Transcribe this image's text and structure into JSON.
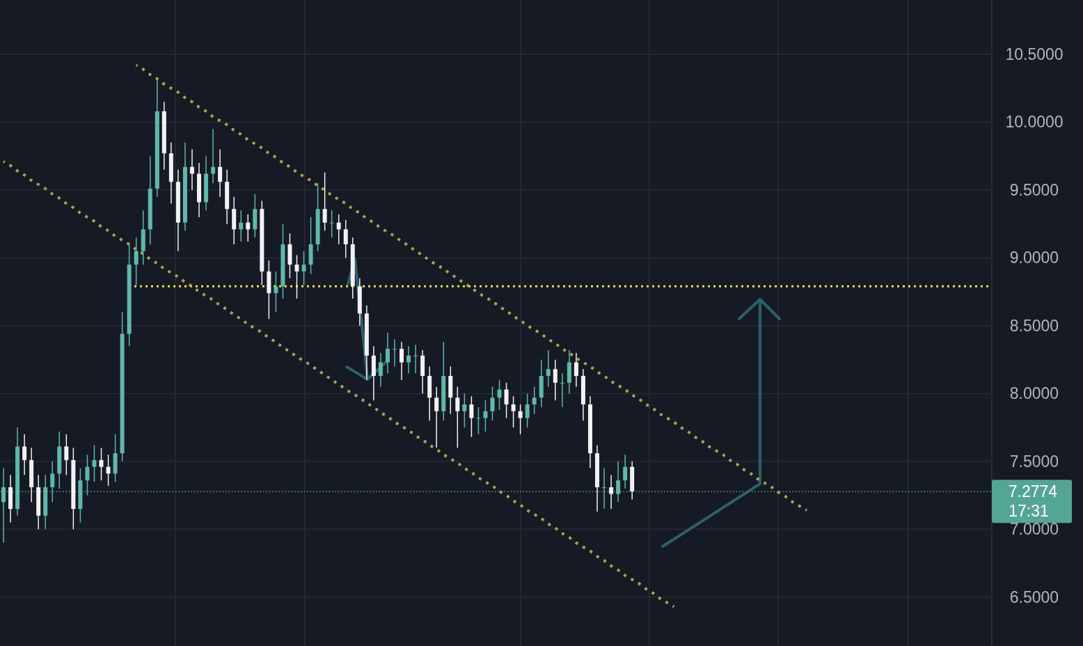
{
  "chart_data": {
    "type": "candlestick",
    "categories": [
      null,
      null,
      null,
      null,
      null,
      null,
      null,
      null,
      null,
      null,
      null,
      null,
      null,
      null,
      null,
      null,
      null,
      null,
      null,
      null,
      null,
      null,
      null,
      null,
      null,
      null,
      null,
      null,
      null,
      null,
      null,
      null,
      null,
      null,
      null,
      null,
      null,
      null,
      null,
      null,
      null,
      null,
      null,
      null,
      null,
      null,
      null,
      null,
      null,
      null,
      null,
      null,
      null,
      null,
      null,
      null,
      null,
      null,
      null,
      null,
      null,
      null,
      null,
      null,
      null,
      null,
      null,
      null,
      null,
      null,
      null,
      null,
      null,
      null,
      null,
      null,
      null,
      null,
      null,
      null,
      null,
      null,
      null,
      null,
      null,
      null,
      null,
      null,
      null,
      null,
      null,
      null,
      null,
      null,
      null,
      null,
      null,
      null,
      null,
      null,
      null,
      null,
      null,
      null,
      null,
      null,
      null,
      null,
      null,
      null,
      null,
      null,
      null,
      null,
      null,
      null,
      null,
      null,
      null,
      null,
      null,
      null,
      null,
      null,
      null,
      null,
      null,
      null,
      null,
      null,
      null,
      null,
      null,
      null,
      null,
      null,
      null,
      null,
      null,
      null,
      null,
      null
    ],
    "ohlc": [
      [
        7.2,
        7.45,
        6.9,
        7.31
      ],
      [
        7.31,
        7.4,
        7.05,
        7.15
      ],
      [
        7.15,
        7.75,
        7.1,
        7.61
      ],
      [
        7.61,
        7.7,
        7.4,
        7.51
      ],
      [
        7.51,
        7.6,
        7.2,
        7.31
      ],
      [
        7.31,
        7.4,
        7.0,
        7.1
      ],
      [
        7.1,
        7.4,
        7.0,
        7.31
      ],
      [
        7.31,
        7.5,
        7.2,
        7.41
      ],
      [
        7.41,
        7.72,
        7.3,
        7.61
      ],
      [
        7.61,
        7.7,
        7.4,
        7.51
      ],
      [
        7.51,
        7.6,
        7.0,
        7.15
      ],
      [
        7.15,
        7.45,
        7.05,
        7.36
      ],
      [
        7.36,
        7.55,
        7.25,
        7.46
      ],
      [
        7.46,
        7.62,
        7.35,
        7.51
      ],
      [
        7.51,
        7.6,
        7.36,
        7.46
      ],
      [
        7.46,
        7.55,
        7.32,
        7.41
      ],
      [
        7.41,
        7.7,
        7.35,
        7.56
      ],
      [
        7.56,
        8.6,
        7.5,
        8.44
      ],
      [
        8.44,
        9.1,
        8.35,
        8.95
      ],
      [
        8.95,
        9.15,
        8.8,
        9.05
      ],
      [
        9.05,
        9.35,
        8.95,
        9.21
      ],
      [
        9.21,
        9.75,
        9.1,
        9.51
      ],
      [
        9.51,
        10.32,
        9.45,
        10.08
      ],
      [
        10.08,
        10.15,
        9.65,
        9.77
      ],
      [
        9.77,
        9.85,
        9.4,
        9.56
      ],
      [
        9.56,
        9.65,
        9.05,
        9.26
      ],
      [
        9.26,
        9.85,
        9.2,
        9.67
      ],
      [
        9.67,
        9.8,
        9.5,
        9.62
      ],
      [
        9.62,
        9.7,
        9.3,
        9.41
      ],
      [
        9.41,
        9.75,
        9.35,
        9.62
      ],
      [
        9.62,
        9.95,
        9.55,
        9.67
      ],
      [
        9.67,
        9.8,
        9.45,
        9.56
      ],
      [
        9.56,
        9.65,
        9.25,
        9.36
      ],
      [
        9.36,
        9.45,
        9.1,
        9.21
      ],
      [
        9.21,
        9.35,
        9.12,
        9.26
      ],
      [
        9.26,
        9.32,
        9.12,
        9.21
      ],
      [
        9.21,
        9.47,
        9.15,
        9.36
      ],
      [
        9.36,
        9.42,
        8.8,
        8.9
      ],
      [
        8.9,
        8.98,
        8.55,
        8.74
      ],
      [
        8.74,
        8.9,
        8.6,
        8.79
      ],
      [
        8.79,
        9.25,
        8.7,
        9.1
      ],
      [
        9.1,
        9.18,
        8.85,
        8.95
      ],
      [
        8.95,
        9.02,
        8.7,
        8.9
      ],
      [
        8.9,
        9.05,
        8.8,
        8.95
      ],
      [
        8.95,
        9.3,
        8.88,
        9.1
      ],
      [
        9.1,
        9.55,
        9.05,
        9.36
      ],
      [
        9.36,
        9.63,
        9.2,
        9.26
      ],
      [
        9.26,
        9.35,
        9.15,
        9.26
      ],
      [
        9.26,
        9.32,
        9.1,
        9.21
      ],
      [
        9.21,
        9.28,
        9.0,
        9.1
      ],
      [
        9.1,
        9.15,
        8.7,
        8.79
      ],
      [
        8.79,
        8.85,
        8.5,
        8.59
      ],
      [
        8.59,
        8.65,
        8.1,
        8.28
      ],
      [
        8.28,
        8.35,
        7.95,
        8.13
      ],
      [
        8.13,
        8.3,
        8.05,
        8.23
      ],
      [
        8.23,
        8.45,
        8.15,
        8.33
      ],
      [
        8.33,
        8.4,
        8.2,
        8.33
      ],
      [
        8.33,
        8.38,
        8.1,
        8.23
      ],
      [
        8.23,
        8.35,
        8.15,
        8.28
      ],
      [
        8.28,
        8.36,
        8.15,
        8.28
      ],
      [
        8.28,
        8.32,
        8.0,
        8.13
      ],
      [
        8.13,
        8.2,
        7.8,
        7.97
      ],
      [
        7.97,
        8.05,
        7.6,
        7.87
      ],
      [
        7.87,
        8.38,
        7.8,
        8.13
      ],
      [
        8.13,
        8.2,
        7.85,
        7.97
      ],
      [
        7.97,
        8.05,
        7.6,
        7.87
      ],
      [
        7.87,
        8.0,
        7.75,
        7.92
      ],
      [
        7.92,
        7.98,
        7.68,
        7.82
      ],
      [
        7.82,
        7.9,
        7.7,
        7.82
      ],
      [
        7.82,
        7.95,
        7.72,
        7.87
      ],
      [
        7.87,
        8.05,
        7.8,
        7.97
      ],
      [
        7.97,
        8.1,
        7.88,
        8.03
      ],
      [
        8.03,
        8.08,
        7.82,
        7.92
      ],
      [
        7.92,
        7.98,
        7.75,
        7.87
      ],
      [
        7.87,
        7.92,
        7.7,
        7.82
      ],
      [
        7.82,
        8.0,
        7.75,
        7.92
      ],
      [
        7.92,
        8.05,
        7.85,
        7.97
      ],
      [
        7.97,
        8.25,
        7.9,
        8.13
      ],
      [
        8.13,
        8.32,
        8.05,
        8.18
      ],
      [
        8.18,
        8.25,
        7.95,
        8.08
      ],
      [
        8.08,
        8.15,
        7.9,
        8.08
      ],
      [
        8.08,
        8.32,
        8.0,
        8.23
      ],
      [
        8.23,
        8.3,
        8.05,
        8.13
      ],
      [
        8.13,
        8.18,
        7.8,
        7.92
      ],
      [
        7.92,
        7.98,
        7.45,
        7.56
      ],
      [
        7.56,
        7.62,
        7.13,
        7.31
      ],
      [
        7.31,
        7.45,
        7.15,
        7.31
      ],
      [
        7.31,
        7.4,
        7.15,
        7.26
      ],
      [
        7.26,
        7.5,
        7.2,
        7.36
      ],
      [
        7.36,
        7.55,
        7.3,
        7.46
      ],
      [
        7.46,
        7.5,
        7.22,
        7.28
      ],
      null,
      null,
      null,
      null,
      null,
      null,
      null,
      null,
      null,
      null,
      null,
      null,
      null,
      null,
      null,
      null,
      null,
      null,
      null,
      null,
      null,
      null,
      null,
      null,
      null,
      null,
      null,
      null,
      null,
      null,
      null,
      null,
      null,
      null,
      null,
      null,
      null,
      null,
      null,
      null,
      null,
      null,
      null,
      null,
      null,
      null,
      null,
      null,
      null,
      null,
      null
    ],
    "series": [
      {
        "type": "line",
        "color": "#a8a44e",
        "line_style": "dotted",
        "values": [
          null,
          null,
          null,
          null,
          null,
          null,
          null,
          null,
          null,
          null,
          null,
          null,
          null,
          null,
          null,
          null,
          null,
          null,
          null,
          10.42,
          10.39,
          10.35,
          10.32,
          10.28,
          10.25,
          10.22,
          10.18,
          10.15,
          10.11,
          10.08,
          10.04,
          10.01,
          9.98,
          9.94,
          9.91,
          9.87,
          9.84,
          9.81,
          9.77,
          9.74,
          9.7,
          9.67,
          9.63,
          9.6,
          9.57,
          9.53,
          9.5,
          9.46,
          9.43,
          9.4,
          9.36,
          9.33,
          9.29,
          9.26,
          9.22,
          9.19,
          9.16,
          9.12,
          9.09,
          9.05,
          9.02,
          8.98,
          8.95,
          8.92,
          8.88,
          8.85,
          8.81,
          8.78,
          8.74,
          8.71,
          8.68,
          8.64,
          8.61,
          8.57,
          8.54,
          8.5,
          8.47,
          8.44,
          8.4,
          8.37,
          8.33,
          8.3,
          8.26,
          8.23,
          8.2,
          8.16,
          8.13,
          8.09,
          8.06,
          8.03,
          7.99,
          7.96,
          7.92,
          7.89,
          7.85,
          7.82,
          7.79,
          7.75,
          7.72,
          7.68,
          7.65,
          7.61,
          7.58,
          7.55,
          7.51,
          7.48,
          7.44,
          7.41,
          7.37,
          7.34,
          7.31,
          7.27,
          7.24,
          7.2,
          7.17,
          7.14,
          null,
          null,
          null,
          null,
          null,
          null,
          null,
          null,
          null,
          null,
          null,
          null,
          null,
          null,
          null,
          null,
          null,
          null,
          null,
          null,
          null,
          null,
          null,
          null,
          null,
          null
        ]
      },
      {
        "type": "line",
        "color": "#a8a44e",
        "line_style": "dotted",
        "values": [
          9.71,
          9.68,
          9.64,
          9.61,
          9.57,
          9.54,
          9.51,
          9.47,
          9.44,
          9.4,
          9.37,
          9.33,
          9.3,
          9.27,
          9.23,
          9.2,
          9.16,
          9.13,
          9.1,
          9.06,
          9.03,
          8.99,
          8.96,
          8.92,
          8.89,
          8.86,
          8.82,
          8.79,
          8.75,
          8.72,
          8.69,
          8.65,
          8.62,
          8.58,
          8.55,
          8.51,
          8.48,
          8.45,
          8.41,
          8.38,
          8.34,
          8.31,
          8.27,
          8.24,
          8.21,
          8.17,
          8.14,
          8.1,
          8.07,
          8.03,
          8.0,
          7.97,
          7.93,
          7.9,
          7.86,
          7.83,
          7.79,
          7.76,
          7.73,
          7.69,
          7.66,
          7.62,
          7.59,
          7.55,
          7.52,
          7.49,
          7.45,
          7.42,
          7.38,
          7.35,
          7.32,
          7.28,
          7.25,
          7.21,
          7.18,
          7.14,
          7.11,
          7.08,
          7.04,
          7.01,
          6.97,
          6.94,
          6.9,
          6.87,
          6.84,
          6.8,
          6.77,
          6.73,
          6.7,
          6.66,
          6.63,
          6.6,
          6.56,
          6.53,
          6.49,
          6.46,
          6.43,
          null,
          null,
          null,
          null,
          null,
          null,
          null,
          null,
          null,
          null,
          null,
          null,
          null,
          null,
          null,
          null,
          null,
          null,
          null,
          null,
          null,
          null,
          null,
          null,
          null,
          null,
          null,
          null,
          null,
          null,
          null,
          null,
          null,
          null,
          null,
          null,
          null,
          null,
          null,
          null,
          null,
          null,
          null,
          null,
          null
        ]
      }
    ],
    "ylim": [
      6.14,
      10.9
    ],
    "yticks": [
      {
        "value": 6.5,
        "label": "6.5000"
      },
      {
        "value": 7,
        "label": "7.0000"
      },
      {
        "value": 7.5,
        "label": "7.5000"
      },
      {
        "value": 8,
        "label": "8.0000"
      },
      {
        "value": 8.5,
        "label": "8.5000"
      },
      {
        "value": 9,
        "label": "9.0000"
      },
      {
        "value": 9.5,
        "label": "9.5000"
      },
      {
        "value": 10,
        "label": "10.0000"
      },
      {
        "value": 10.5,
        "label": "10.5000"
      }
    ],
    "ref_lines": [
      {
        "axis": "y",
        "value": 8.79,
        "color": "#ece04c",
        "line_style": "dotted"
      },
      {
        "axis": "y",
        "value": 7.2774,
        "label": "7.2774",
        "color": "#55a597",
        "line_style": "dotted"
      }
    ],
    "annotations": [
      "17:31"
    ],
    "tick_labels": "y",
    "grid": true
  }
}
